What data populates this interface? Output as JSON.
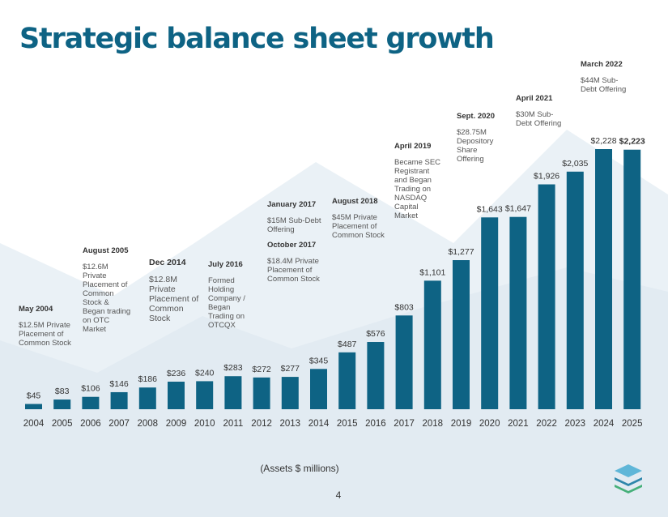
{
  "page": {
    "title": "Strategic balance sheet growth",
    "footnote": "(Assets $ millions)",
    "page_number": "4",
    "colors": {
      "title": "#0e6384",
      "bar": "#0e6384",
      "background_shape": "#e6eef4"
    }
  },
  "chart_data": {
    "type": "bar",
    "title": "Strategic balance sheet growth",
    "xlabel": "(Assets $ millions)",
    "ylabel": "",
    "ylim": [
      0,
      2228
    ],
    "grid": false,
    "categories": [
      "2004",
      "2005",
      "2006",
      "2007",
      "2008",
      "2009",
      "2010",
      "2011",
      "2012",
      "2013",
      "2014",
      "2015",
      "2016",
      "2017",
      "2018",
      "2019",
      "2020",
      "2021",
      "2022",
      "2023",
      "2024",
      "2025"
    ],
    "values": [
      45,
      83,
      106,
      146,
      186,
      236,
      240,
      283,
      272,
      277,
      345,
      487,
      576,
      803,
      1101,
      1277,
      1643,
      1647,
      1926,
      2035,
      2228,
      2223
    ],
    "data_labels": [
      "$45",
      "$83",
      "$106",
      "$146",
      "$186",
      "$236",
      "$240",
      "$283",
      "$272",
      "$277",
      "$345",
      "$487",
      "$576",
      "$803",
      "$1,101",
      "$1,277",
      "$1,643",
      "$1,647",
      "$1,926",
      "$2,035",
      "$2,228",
      "$2,223"
    ],
    "bold_label_index": 21,
    "annotations": [
      {
        "title": "May 2004",
        "body": "$12.5M Private Placement of Common Stock"
      },
      {
        "title": "August 2005",
        "body": "$12.6M Private Placement of Common Stock & Began trading on OTC Market"
      },
      {
        "title": "Dec 2014",
        "body": "$12.8M Private Placement of Common Stock"
      },
      {
        "title": "July 2016",
        "body": "Formed Holding Company / Began Trading on OTCQX"
      },
      {
        "title": "January 2017",
        "body": "$15M Sub-Debt Offering",
        "title2": "October 2017",
        "body2": "$18.4M Private Placement of Common Stock"
      },
      {
        "title": "August 2018",
        "body": "$45M Private Placement of Common Stock"
      },
      {
        "title": "April 2019",
        "body": "Became SEC Registrant and Began Trading on NASDAQ Capital Market"
      },
      {
        "title": "Sept. 2020",
        "body": "$28.75M Depository Share Offering"
      },
      {
        "title": "April 2021",
        "body": "$30M Sub-Debt Offering"
      },
      {
        "title": "March 2022",
        "body": "$44M Sub-Debt Offering"
      }
    ]
  }
}
